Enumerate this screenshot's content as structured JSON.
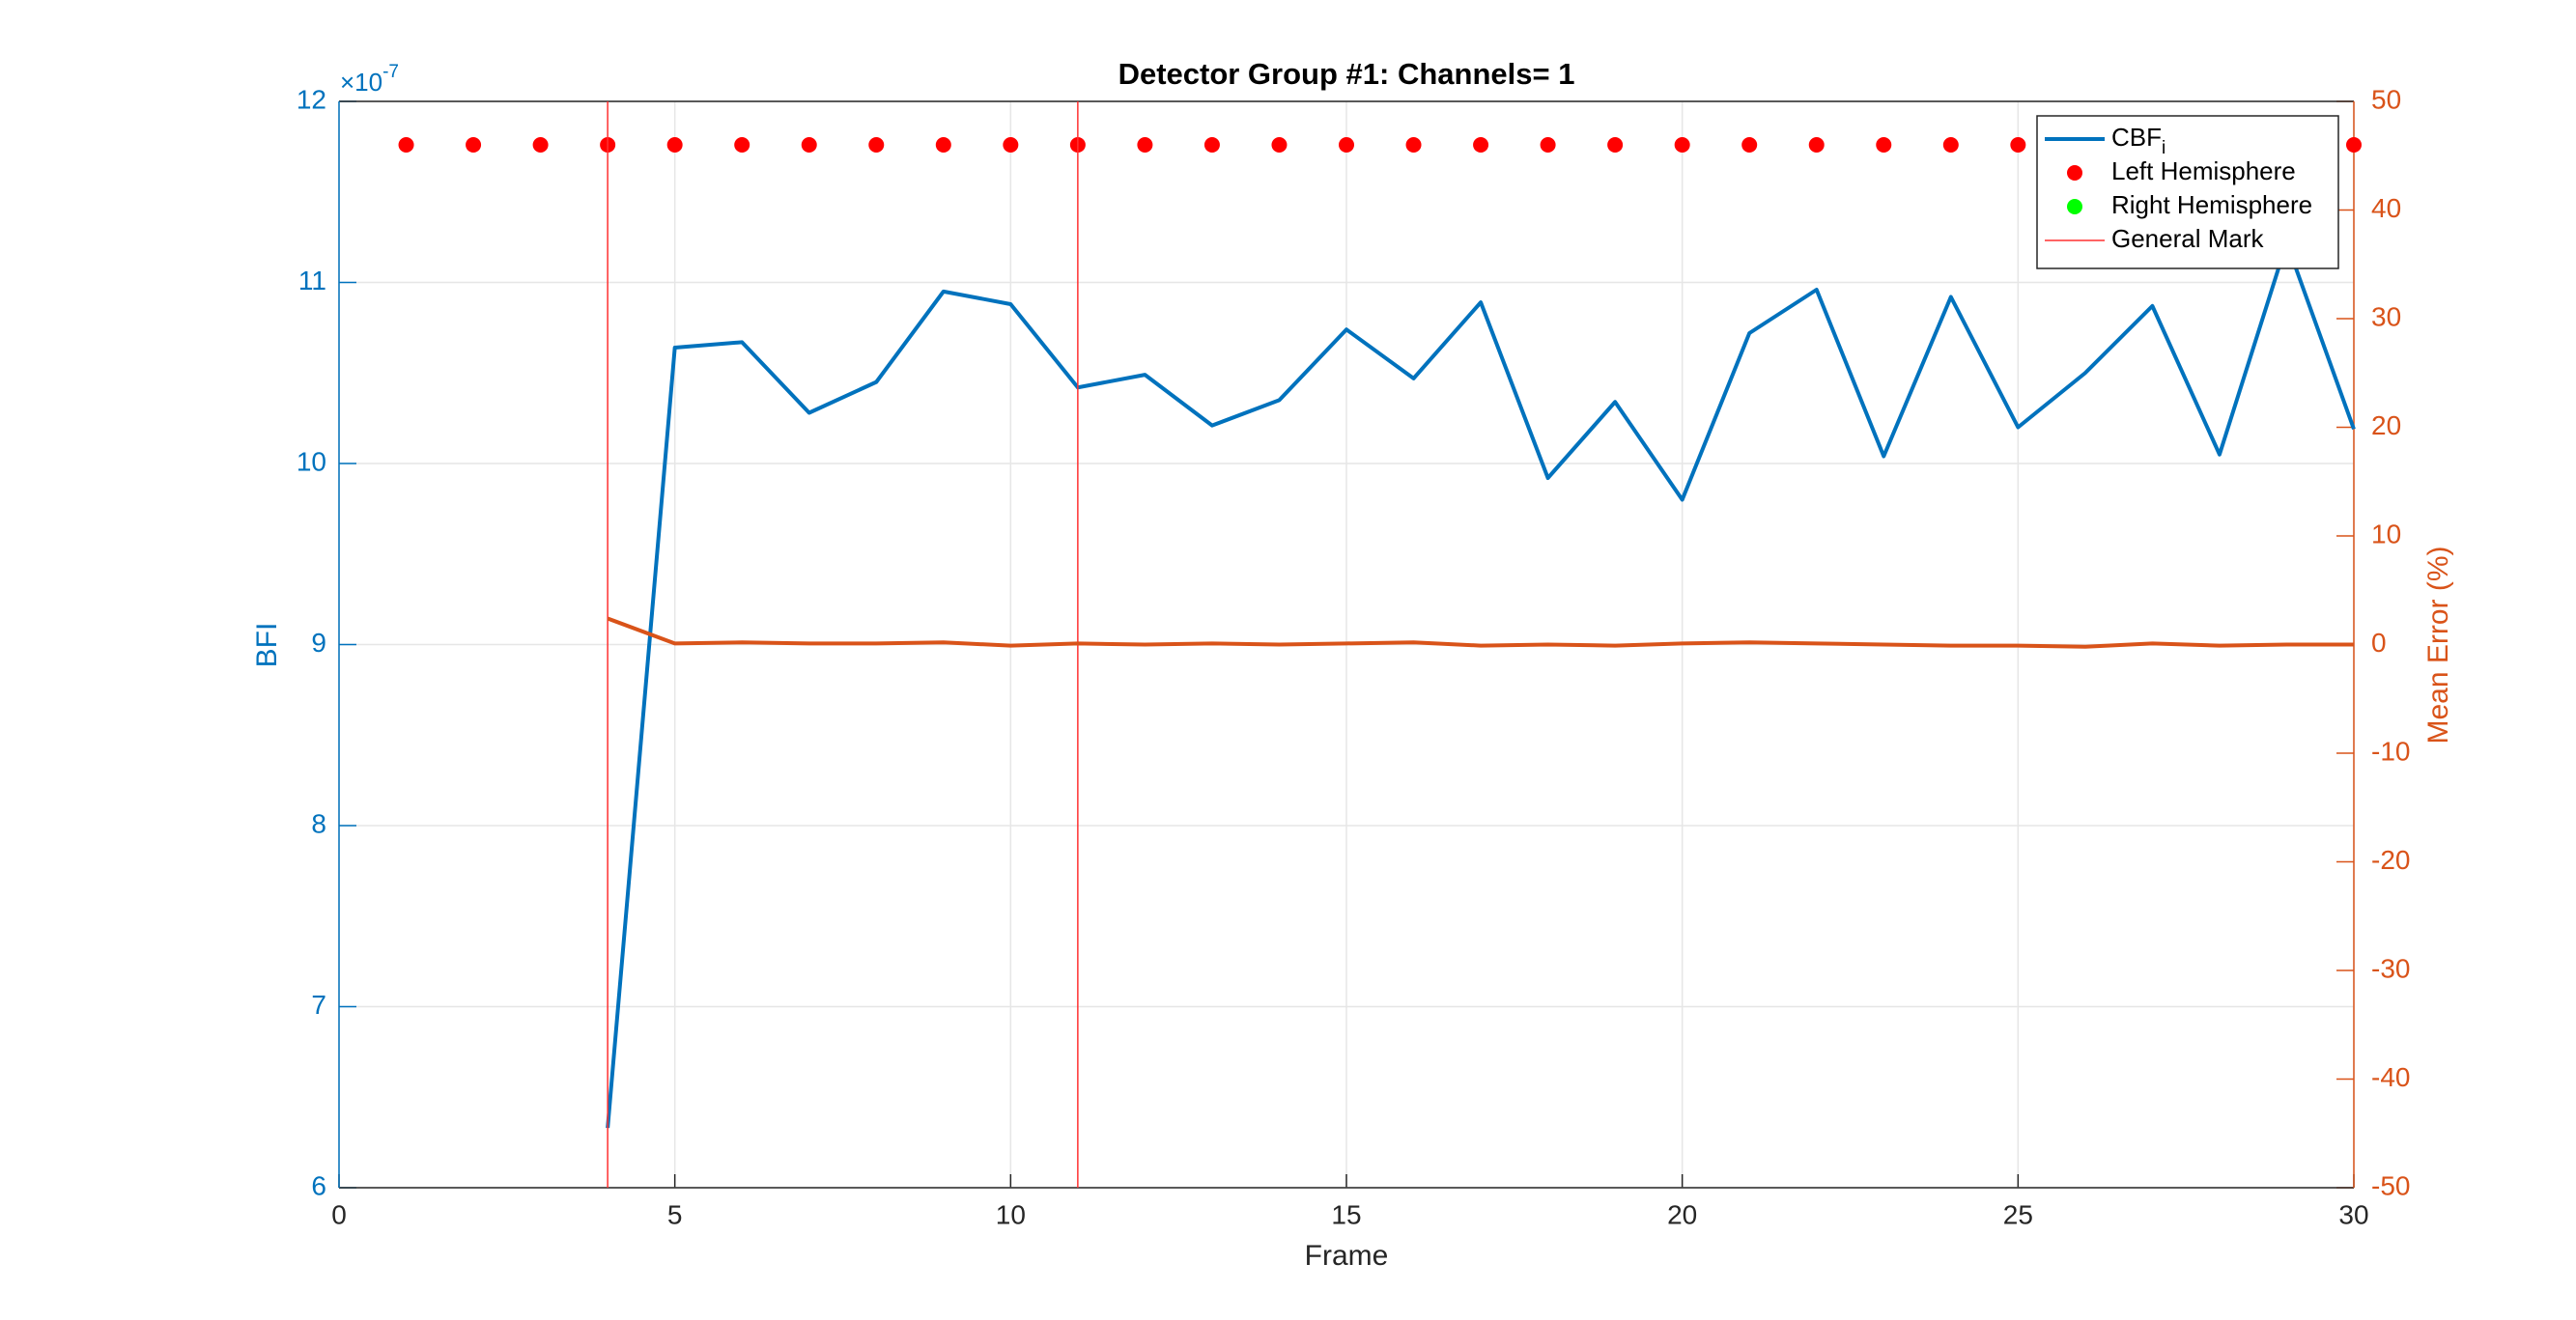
{
  "chart_data": {
    "type": "line",
    "title": "Detector Group #1: Channels= 1",
    "xlabel": "Frame",
    "ylabel": "BFI",
    "y2label": "Mean Error (%)",
    "exponent_base": "×10",
    "exponent": "-7",
    "xlim": [
      0,
      30
    ],
    "xticks": [
      0,
      5,
      10,
      15,
      20,
      25,
      30
    ],
    "ylim": [
      6,
      12
    ],
    "yticks": [
      6,
      7,
      8,
      9,
      10,
      11,
      12
    ],
    "y2lim": [
      -50,
      50
    ],
    "y2ticks": [
      -50,
      -40,
      -30,
      -20,
      -10,
      0,
      10,
      20,
      30,
      40,
      50
    ],
    "grid": true,
    "legend": "upper right",
    "series": [
      {
        "name": "CBF",
        "name_subscript": "i",
        "type": "line",
        "color": "#0072bd",
        "x": [
          4,
          5,
          6,
          7,
          8,
          9,
          10,
          11,
          12,
          13,
          14,
          15,
          16,
          17,
          18,
          19,
          20,
          21,
          22,
          23,
          24,
          25,
          26,
          27,
          28,
          29,
          30
        ],
        "values": [
          6.33,
          10.64,
          10.67,
          10.28,
          10.45,
          10.95,
          10.88,
          10.42,
          10.49,
          10.21,
          10.35,
          10.74,
          10.47,
          10.89,
          9.92,
          10.34,
          9.8,
          10.72,
          10.96,
          10.04,
          10.92,
          10.2,
          10.5,
          10.87,
          10.05,
          11.22,
          10.19
        ]
      },
      {
        "name": "Left Hemisphere",
        "type": "scatter",
        "color": "#ff0000",
        "x": [
          1,
          2,
          3,
          4,
          5,
          6,
          7,
          8,
          9,
          10,
          11,
          12,
          13,
          14,
          15,
          16,
          17,
          18,
          19,
          20,
          21,
          22,
          23,
          24,
          25,
          26,
          27,
          28,
          29,
          30
        ],
        "values": [
          11.76,
          11.76,
          11.76,
          11.76,
          11.76,
          11.76,
          11.76,
          11.76,
          11.76,
          11.76,
          11.76,
          11.76,
          11.76,
          11.76,
          11.76,
          11.76,
          11.76,
          11.76,
          11.76,
          11.76,
          11.76,
          11.76,
          11.76,
          11.76,
          11.76,
          11.76,
          11.76,
          11.76,
          11.76,
          11.76
        ]
      },
      {
        "name": "Right Hemisphere",
        "type": "scatter",
        "color": "#00ff00",
        "x": [],
        "values": []
      },
      {
        "name": "General Mark",
        "type": "vline",
        "color": "#ff3030",
        "x": [
          4,
          11
        ]
      },
      {
        "type": "line",
        "axis": "y2",
        "color": "#d95319",
        "x": [
          4,
          5,
          6,
          7,
          8,
          9,
          10,
          11,
          12,
          13,
          14,
          15,
          16,
          17,
          18,
          19,
          20,
          21,
          22,
          23,
          24,
          25,
          26,
          27,
          28,
          29,
          30
        ],
        "values": [
          2.4,
          0.1,
          0.2,
          0.1,
          0.1,
          0.2,
          -0.1,
          0.1,
          0,
          0.1,
          0,
          0.1,
          0.2,
          -0.1,
          0,
          -0.1,
          0.1,
          0.2,
          0.1,
          0,
          -0.1,
          -0.1,
          -0.2,
          0.1,
          -0.1,
          0,
          0
        ]
      }
    ]
  }
}
